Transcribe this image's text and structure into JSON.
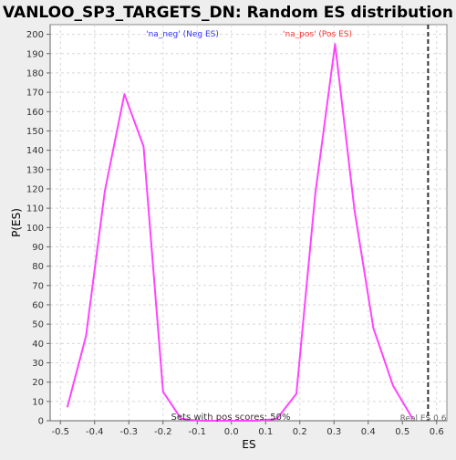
{
  "chart_data": {
    "type": "line",
    "title": "VANLOO_SP3_TARGETS_DN: Random ES distribution",
    "xlabel": "ES",
    "ylabel": "P(ES)",
    "xlim": [
      -0.53,
      0.63
    ],
    "ylim": [
      0,
      205
    ],
    "xticks": [
      -0.5,
      -0.4,
      -0.3,
      -0.2,
      -0.1,
      0.0,
      0.1,
      0.2,
      0.3,
      0.4,
      0.5,
      0.6
    ],
    "xtick_labels": [
      "-0.5",
      "-0.4",
      "-0.3",
      "-0.2",
      "-0.1",
      "0.0",
      "0.1",
      "0.2",
      "0.3",
      "0.4",
      "0.5",
      "0.6"
    ],
    "yticks": [
      0,
      10,
      20,
      30,
      40,
      50,
      60,
      70,
      80,
      90,
      100,
      110,
      120,
      130,
      140,
      150,
      160,
      170,
      180,
      190,
      200
    ],
    "grid": true,
    "series": [
      {
        "color": "#ff44ff",
        "x": [
          -0.48,
          -0.425,
          -0.37,
          -0.313,
          -0.257,
          -0.2,
          -0.147,
          -0.09,
          -0.035,
          0.02,
          0.077,
          0.133,
          0.19,
          0.245,
          0.303,
          0.36,
          0.415,
          0.473,
          0.53
        ],
        "y": [
          7,
          44,
          119,
          169,
          142,
          15,
          1,
          0,
          0,
          0,
          0,
          1,
          14,
          117,
          195,
          109,
          48,
          18,
          1
        ]
      }
    ],
    "annotations": {
      "neg_label": "'na_neg' (Neg ES)",
      "neg_color": "#3333ff",
      "pos_label": "'na_pos' (Pos ES)",
      "pos_color": "#ff3333",
      "pos_scores_text": "Sets with pos scores: 50%",
      "real_es_label": "Real ES 0.6",
      "real_es_value": 0.575
    }
  }
}
